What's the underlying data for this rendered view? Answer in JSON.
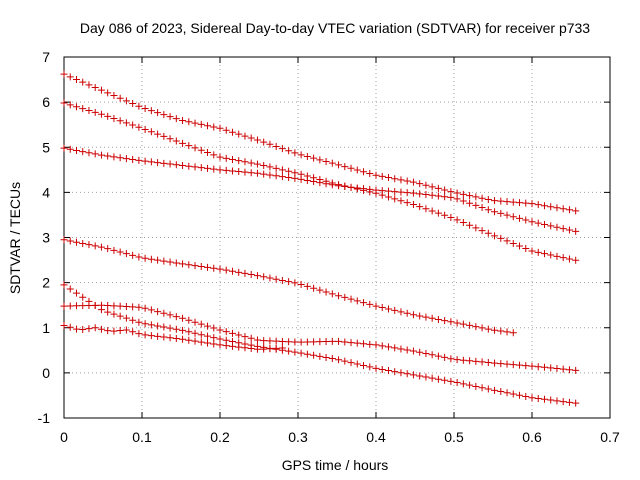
{
  "chart_data": {
    "type": "scatter",
    "title": "Day 086 of 2023, Sidereal Day-to-day VTEC variation (SDTVAR) for receiver p733",
    "xlabel": "GPS time / hours",
    "ylabel": "SDTVAR / TECUs",
    "xlim": [
      0,
      0.7
    ],
    "ylim": [
      -1,
      7
    ],
    "xticks": [
      0,
      0.1,
      0.2,
      0.3,
      0.4,
      0.5,
      0.6,
      0.7
    ],
    "xtick_labels": [
      "0",
      "0.1",
      "0.2",
      "0.3",
      "0.4",
      "0.5",
      "0.6",
      "0.7"
    ],
    "yticks": [
      -1,
      0,
      1,
      2,
      3,
      4,
      5,
      6,
      7
    ],
    "ytick_labels": [
      "-1",
      "0",
      "1",
      "2",
      "3",
      "4",
      "5",
      "6",
      "7"
    ],
    "grid": true,
    "marker": "plus",
    "color": "#cc0000",
    "series": [
      {
        "name": "s1",
        "x": [
          0,
          0.05,
          0.1,
          0.15,
          0.2,
          0.25,
          0.3,
          0.35,
          0.4,
          0.45,
          0.5,
          0.55,
          0.6,
          0.66
        ],
        "y": [
          6.62,
          6.25,
          5.88,
          5.6,
          5.42,
          5.15,
          4.85,
          4.62,
          4.38,
          4.22,
          4.0,
          3.82,
          3.75,
          3.58
        ]
      },
      {
        "name": "s2",
        "x": [
          0,
          0.05,
          0.1,
          0.15,
          0.2,
          0.25,
          0.3,
          0.35,
          0.4,
          0.45,
          0.5,
          0.55,
          0.6,
          0.66
        ],
        "y": [
          5.98,
          5.72,
          5.42,
          5.1,
          4.78,
          4.62,
          4.42,
          4.18,
          3.98,
          3.72,
          3.42,
          3.05,
          2.7,
          2.48
        ]
      },
      {
        "name": "s3",
        "x": [
          0,
          0.05,
          0.1,
          0.15,
          0.2,
          0.25,
          0.3,
          0.35,
          0.4,
          0.45,
          0.5,
          0.55,
          0.6,
          0.66
        ],
        "y": [
          4.98,
          4.82,
          4.7,
          4.6,
          4.5,
          4.42,
          4.3,
          4.15,
          4.05,
          3.98,
          3.88,
          3.58,
          3.35,
          3.12
        ]
      },
      {
        "name": "s4",
        "x": [
          0,
          0.05,
          0.1,
          0.15,
          0.2,
          0.25,
          0.3,
          0.35,
          0.4,
          0.45,
          0.5,
          0.55,
          0.58
        ],
        "y": [
          2.95,
          2.78,
          2.55,
          2.42,
          2.3,
          2.15,
          1.98,
          1.72,
          1.48,
          1.28,
          1.12,
          0.95,
          0.88
        ]
      },
      {
        "name": "s5",
        "x": [
          0,
          0.05,
          0.1,
          0.15,
          0.2,
          0.25,
          0.3,
          0.35,
          0.4,
          0.45,
          0.5,
          0.55,
          0.6,
          0.66
        ],
        "y": [
          1.95,
          1.38,
          1.1,
          0.95,
          0.75,
          0.58,
          0.45,
          0.3,
          0.1,
          -0.05,
          -0.2,
          -0.38,
          -0.55,
          -0.68
        ]
      },
      {
        "name": "s6",
        "x": [
          0,
          0.05,
          0.1,
          0.15,
          0.2,
          0.25,
          0.3,
          0.35,
          0.4,
          0.45,
          0.5,
          0.55,
          0.6,
          0.66
        ],
        "y": [
          1.48,
          1.5,
          1.45,
          1.22,
          0.95,
          0.72,
          0.68,
          0.7,
          0.62,
          0.48,
          0.3,
          0.22,
          0.15,
          0.05
        ]
      },
      {
        "name": "s7",
        "x": [
          0,
          0.02,
          0.04,
          0.06,
          0.08,
          0.1,
          0.15,
          0.2,
          0.25,
          0.28
        ],
        "y": [
          1.05,
          0.95,
          1.0,
          0.92,
          0.95,
          0.85,
          0.75,
          0.62,
          0.52,
          0.55
        ]
      }
    ]
  }
}
